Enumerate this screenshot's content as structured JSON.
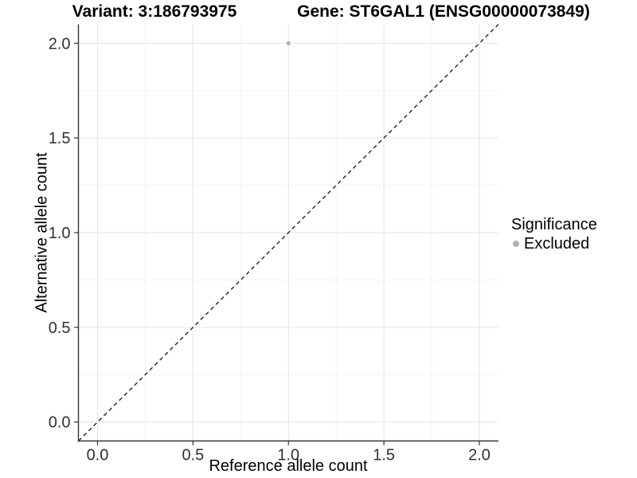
{
  "chart_data": {
    "type": "scatter",
    "title_left": "Variant: 3:186793975",
    "title_right": "Gene: ST6GAL1 (ENSG00000073849)",
    "xlabel": "Reference allele count",
    "ylabel": "Alternative allele count",
    "xlim": [
      -0.1,
      2.1
    ],
    "ylim": [
      -0.1,
      2.1
    ],
    "x_ticks": [
      0.0,
      0.5,
      1.0,
      1.5,
      2.0
    ],
    "x_tick_labels": [
      "0.0",
      "0.5",
      "1.0",
      "1.5",
      "2.0"
    ],
    "y_ticks": [
      0.0,
      0.5,
      1.0,
      1.5,
      2.0
    ],
    "y_tick_labels": [
      "0.0",
      "0.5",
      "1.0",
      "1.5",
      "2.0"
    ],
    "minor_ticks": [
      0.25,
      0.75,
      1.25,
      1.75
    ],
    "grid": "major+minor",
    "legend_position": "right",
    "reference_line": {
      "slope": 1,
      "intercept": 0,
      "style": "dashed",
      "color": "#222222"
    },
    "series": [
      {
        "name": "Excluded",
        "color": "#b0b0b0",
        "points": [
          {
            "x": 1.0,
            "y": 2.0
          }
        ]
      }
    ],
    "legend": {
      "title": "Significance",
      "items": [
        {
          "label": "Excluded",
          "color": "#b0b0b0"
        }
      ]
    },
    "colors": {
      "grid_major": "#e6e6e6",
      "grid_minor": "#f0f0f0",
      "axis_line": "#333333",
      "tick_mark": "#333333",
      "tick_text": "#303030",
      "background": "#ffffff"
    }
  }
}
